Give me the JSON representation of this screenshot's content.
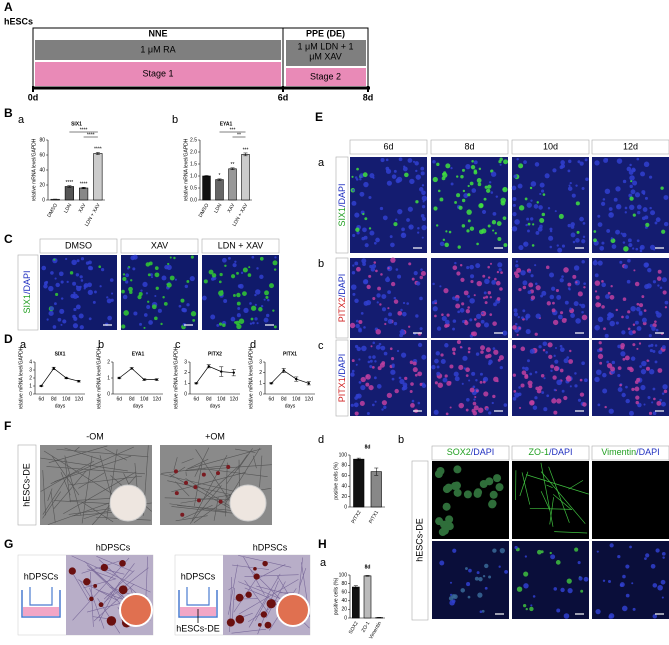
{
  "panel_a": {
    "label": "A",
    "start": "hESCs",
    "phases": [
      {
        "name": "NNE",
        "treatment_lines": [
          "1 μM RA"
        ],
        "stage": "Stage 1"
      },
      {
        "name": "PPE (DE)",
        "treatment_lines": [
          "1 μM LDN + 1",
          "μM XAV"
        ],
        "stage": "Stage 2"
      }
    ],
    "days": [
      "0d",
      "6d",
      "8d"
    ]
  },
  "panel_b": {
    "label": "B",
    "sublabels": [
      "a",
      "b"
    ]
  },
  "panel_c": {
    "label": "C",
    "columns": [
      "DMSO",
      "XAV",
      "LDN + XAV"
    ],
    "row": {
      "marker": "SIX1",
      "counterstain": "/DAPI"
    }
  },
  "panel_d": {
    "label": "D",
    "sublabels": [
      "a",
      "b",
      "c",
      "d"
    ]
  },
  "panel_e": {
    "label": "E",
    "columns": [
      "6d",
      "8d",
      "10d",
      "12d"
    ],
    "rows": [
      {
        "sublabel": "a",
        "marker": "SIX1",
        "counterstain": "/DAPI"
      },
      {
        "sublabel": "b",
        "marker": "PITX2",
        "counterstain": "/DAPI"
      },
      {
        "sublabel": "c",
        "marker": "PITX1",
        "counterstain": "/DAPI"
      }
    ]
  },
  "panel_f": {
    "label": "F",
    "columns": [
      "-OM",
      "+OM"
    ],
    "row_label": "hESCs-DE",
    "sublabels": [
      "d",
      "b"
    ]
  },
  "panel_g": {
    "label": "G",
    "images": [
      {
        "title": "hDPSCs",
        "inset_labels": [
          "hDPSCs"
        ]
      },
      {
        "title": "hDPSCs",
        "inset_labels": [
          "hDPSCs",
          "hESCs-DE"
        ]
      }
    ]
  },
  "panel_h": {
    "label": "H",
    "sublabel": "a",
    "columns": [
      {
        "marker": "SOX2",
        "counterstain": "/DAPI"
      },
      {
        "marker": "ZO-1",
        "counterstain": "/DAPI"
      },
      {
        "marker": "Vimentin",
        "counterstain": "/DAPI"
      }
    ],
    "row_label": "hESCs-DE"
  },
  "chart_data": [
    {
      "type": "bar",
      "title": "SIX1",
      "ylabel": "relative mRNA level/GAPDH",
      "categories": [
        "DMSO",
        "LDN",
        "XAV",
        "LDN + XAV"
      ],
      "values": [
        1,
        18,
        16,
        62
      ],
      "errors": [
        0.2,
        1,
        1,
        1.5
      ],
      "colors": [
        "#ffffff",
        "#555555",
        "#888888",
        "#cccccc"
      ],
      "ylim": [
        0,
        80
      ],
      "yticks": [
        0,
        20,
        40,
        60,
        80
      ],
      "bar_annotations": [
        null,
        "****",
        "****",
        "****"
      ],
      "bracket_annotations": [
        "****",
        "****"
      ]
    },
    {
      "type": "bar",
      "title": "EYA1",
      "ylabel": "relative mRNA level/GAPDH",
      "categories": [
        "DMSO",
        "LDN",
        "XAV",
        "LDN + XAV"
      ],
      "values": [
        1.0,
        0.85,
        1.3,
        1.9
      ],
      "errors": [
        0.02,
        0.03,
        0.04,
        0.06
      ],
      "colors": [
        "#111111",
        "#666666",
        "#999999",
        "#cccccc"
      ],
      "ylim": [
        0,
        2.5
      ],
      "yticks": [
        {
          "value": 0,
          "label": "0.0"
        },
        0.5,
        {
          "value": 1,
          "label": "1.0"
        },
        1.5,
        {
          "value": 2,
          "label": "2.0"
        },
        2.5
      ],
      "bar_annotations": [
        null,
        "*",
        "**",
        "***"
      ],
      "bracket_annotations": [
        "***",
        "**"
      ]
    },
    {
      "type": "line",
      "title": "SIX1",
      "ylabel": "relative mRNA level/GAPDH",
      "xlabel": "days",
      "categories": [
        "6d",
        "8d",
        "10d",
        "12d"
      ],
      "values": [
        1,
        3.2,
        2,
        1.6
      ],
      "errors": [
        0.05,
        0.15,
        0.1,
        0.1
      ],
      "color": "#000000",
      "ylim": [
        0,
        4
      ],
      "yticks": [
        0,
        1,
        2,
        3,
        4
      ]
    },
    {
      "type": "line",
      "title": "EYA1",
      "ylabel": "relative mRNA level/GAPDH",
      "xlabel": "days",
      "categories": [
        "6d",
        "8d",
        "10d",
        "12d"
      ],
      "values": [
        1,
        1.6,
        0.9,
        0.9
      ],
      "errors": [
        0.05,
        0.05,
        0.05,
        0.05
      ],
      "color": "#000000",
      "ylim": [
        0,
        2
      ],
      "yticks": [
        0,
        1,
        2
      ]
    },
    {
      "type": "line",
      "title": "PITX2",
      "ylabel": "relative mRNA level/GAPDH",
      "xlabel": "days",
      "categories": [
        "6d",
        "8d",
        "10d",
        "12d"
      ],
      "values": [
        1,
        2.6,
        2.1,
        2.0
      ],
      "errors": [
        0.05,
        0.15,
        0.45,
        0.3
      ],
      "color": "#000000",
      "ylim": [
        0,
        3
      ],
      "yticks": [
        0,
        1,
        2,
        3
      ]
    },
    {
      "type": "line",
      "title": "PITX1",
      "ylabel": "relative mRNA level/GAPDH",
      "xlabel": "days",
      "categories": [
        "6d",
        "8d",
        "10d",
        "12d"
      ],
      "values": [
        1,
        2.2,
        1.4,
        1.0
      ],
      "errors": [
        0.05,
        0.2,
        0.2,
        0.15
      ],
      "color": "#000000",
      "ylim": [
        0,
        3
      ],
      "yticks": [
        0,
        1,
        2,
        3
      ]
    },
    {
      "type": "bar",
      "title": "8d",
      "ylabel": "positive cells (%)",
      "categories": [
        "PITX2",
        "PITX1"
      ],
      "values": [
        92,
        68
      ],
      "errors": [
        2,
        7
      ],
      "colors": [
        "#111111",
        "#888888"
      ],
      "ylim": [
        0,
        100
      ],
      "yticks": [
        0,
        20,
        40,
        60,
        80,
        100
      ]
    },
    {
      "type": "bar",
      "title": "8d",
      "ylabel": "positive cells (%)",
      "categories": [
        "SOX2",
        "ZO-1",
        "Vimentin"
      ],
      "values": [
        72,
        98,
        1
      ],
      "errors": [
        3,
        1,
        0.5
      ],
      "colors": [
        "#111111",
        "#bbbbbb",
        "#ffffff"
      ],
      "ylim": [
        0,
        100
      ],
      "yticks": [
        0,
        20,
        40,
        60,
        80,
        100
      ]
    }
  ]
}
